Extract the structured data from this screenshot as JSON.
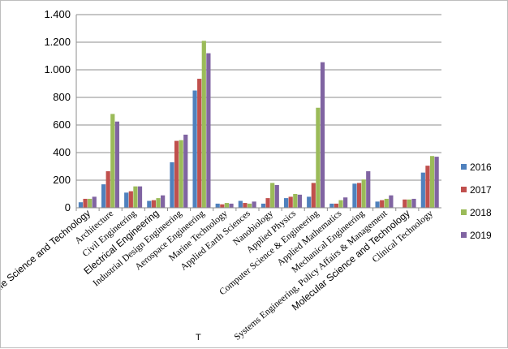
{
  "chart_data": {
    "type": "bar",
    "title": "",
    "xlabel": "",
    "ylabel": "",
    "ylim": [
      0,
      1400
    ],
    "yticks": [
      0,
      200,
      400,
      600,
      800,
      1000,
      1200,
      1400
    ],
    "ytick_labels": [
      "0",
      "200",
      "400",
      "600",
      "800",
      "1.000",
      "1.200",
      "1.400"
    ],
    "grid": true,
    "legend_position": "right",
    "categories": [
      "Life Science and Technology",
      "Architecture",
      "Civil Engineering",
      "Electrical Engineering",
      "Industrial Design Engineering",
      "Aerospace Engineering",
      "Marine Technology",
      "Applied Earth Sciences",
      "Nanobiology",
      "Applied Physics",
      "Computer Science & Engineering",
      "Applied Mathematics",
      "Mechanical Engineering",
      "Systems Engineering, Policy Affairs & Management",
      "Molecular Science and Technology",
      "Clinical Technology"
    ],
    "series": [
      {
        "name": "2016",
        "color": "#4F81BD",
        "values": [
          40,
          170,
          110,
          50,
          330,
          850,
          30,
          50,
          30,
          70,
          80,
          30,
          175,
          45,
          0,
          255
        ]
      },
      {
        "name": "2017",
        "color": "#C0504D",
        "values": [
          65,
          265,
          120,
          55,
          485,
          935,
          25,
          35,
          70,
          80,
          180,
          30,
          180,
          55,
          60,
          305
        ]
      },
      {
        "name": "2018",
        "color": "#9BBB59",
        "values": [
          65,
          680,
          155,
          70,
          490,
          1210,
          35,
          30,
          180,
          100,
          725,
          55,
          205,
          65,
          60,
          375
        ]
      },
      {
        "name": "2019",
        "color": "#8064A2",
        "values": [
          80,
          625,
          155,
          90,
          530,
          1120,
          30,
          45,
          165,
          95,
          1055,
          75,
          265,
          90,
          65,
          370
        ]
      }
    ]
  },
  "stray_label": "T"
}
